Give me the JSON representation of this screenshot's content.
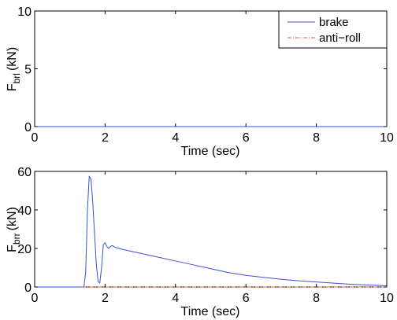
{
  "chart_data": [
    {
      "type": "line",
      "title": "",
      "xlabel": "Time (sec)",
      "ylabel": {
        "base": "F",
        "sub": "brl",
        "suffix": "(kN)"
      },
      "xlim": [
        0,
        10
      ],
      "ylim": [
        0,
        10
      ],
      "xticks": [
        0,
        2,
        4,
        6,
        8,
        10
      ],
      "yticks": [
        0,
        5,
        10
      ],
      "grid": false,
      "legend": {
        "placement": "top-right",
        "entries": [
          "brake",
          "anti−roll"
        ]
      },
      "series": [
        {
          "name": "brake",
          "color": "#3b4fd6",
          "style": "solid",
          "points": [
            [
              0,
              0
            ],
            [
              10,
              0
            ]
          ]
        },
        {
          "name": "anti−roll",
          "color": "#e0603a",
          "style": "dashdot",
          "points": [
            [
              0,
              0
            ],
            [
              10,
              0
            ]
          ]
        }
      ]
    },
    {
      "type": "line",
      "title": "",
      "xlabel": "Time (sec)",
      "ylabel": {
        "base": "F",
        "sub": "brr",
        "suffix": "(kN)"
      },
      "xlim": [
        0,
        10
      ],
      "ylim": [
        0,
        60
      ],
      "xticks": [
        0,
        2,
        4,
        6,
        8,
        10
      ],
      "yticks": [
        0,
        20,
        40,
        60
      ],
      "grid": false,
      "series": [
        {
          "name": "brake",
          "color": "#3b4fd6",
          "style": "solid",
          "points": [
            [
              0,
              0
            ],
            [
              1.4,
              0
            ],
            [
              1.45,
              8
            ],
            [
              1.5,
              40
            ],
            [
              1.55,
              57.5
            ],
            [
              1.6,
              56
            ],
            [
              1.65,
              44
            ],
            [
              1.7,
              28
            ],
            [
              1.75,
              12
            ],
            [
              1.8,
              3
            ],
            [
              1.85,
              2
            ],
            [
              1.9,
              10
            ],
            [
              1.95,
              22
            ],
            [
              2.0,
              23
            ],
            [
              2.05,
              21
            ],
            [
              2.1,
              20
            ],
            [
              2.15,
              21
            ],
            [
              2.2,
              21.5
            ],
            [
              2.3,
              20.5
            ],
            [
              2.5,
              19.5
            ],
            [
              3.0,
              17.5
            ],
            [
              3.5,
              15.5
            ],
            [
              4.0,
              13.5
            ],
            [
              4.5,
              11.5
            ],
            [
              5.0,
              9.5
            ],
            [
              5.5,
              7.5
            ],
            [
              6.0,
              6
            ],
            [
              6.5,
              5
            ],
            [
              7.0,
              4
            ],
            [
              7.5,
              3.2
            ],
            [
              8.0,
              2.6
            ],
            [
              8.5,
              2
            ],
            [
              9.0,
              1.4
            ],
            [
              9.5,
              1
            ],
            [
              10.0,
              0.6
            ]
          ]
        },
        {
          "name": "anti−roll",
          "color": "#e0603a",
          "style": "dashdot",
          "points": [
            [
              0,
              0
            ],
            [
              10,
              0
            ]
          ]
        }
      ]
    }
  ]
}
